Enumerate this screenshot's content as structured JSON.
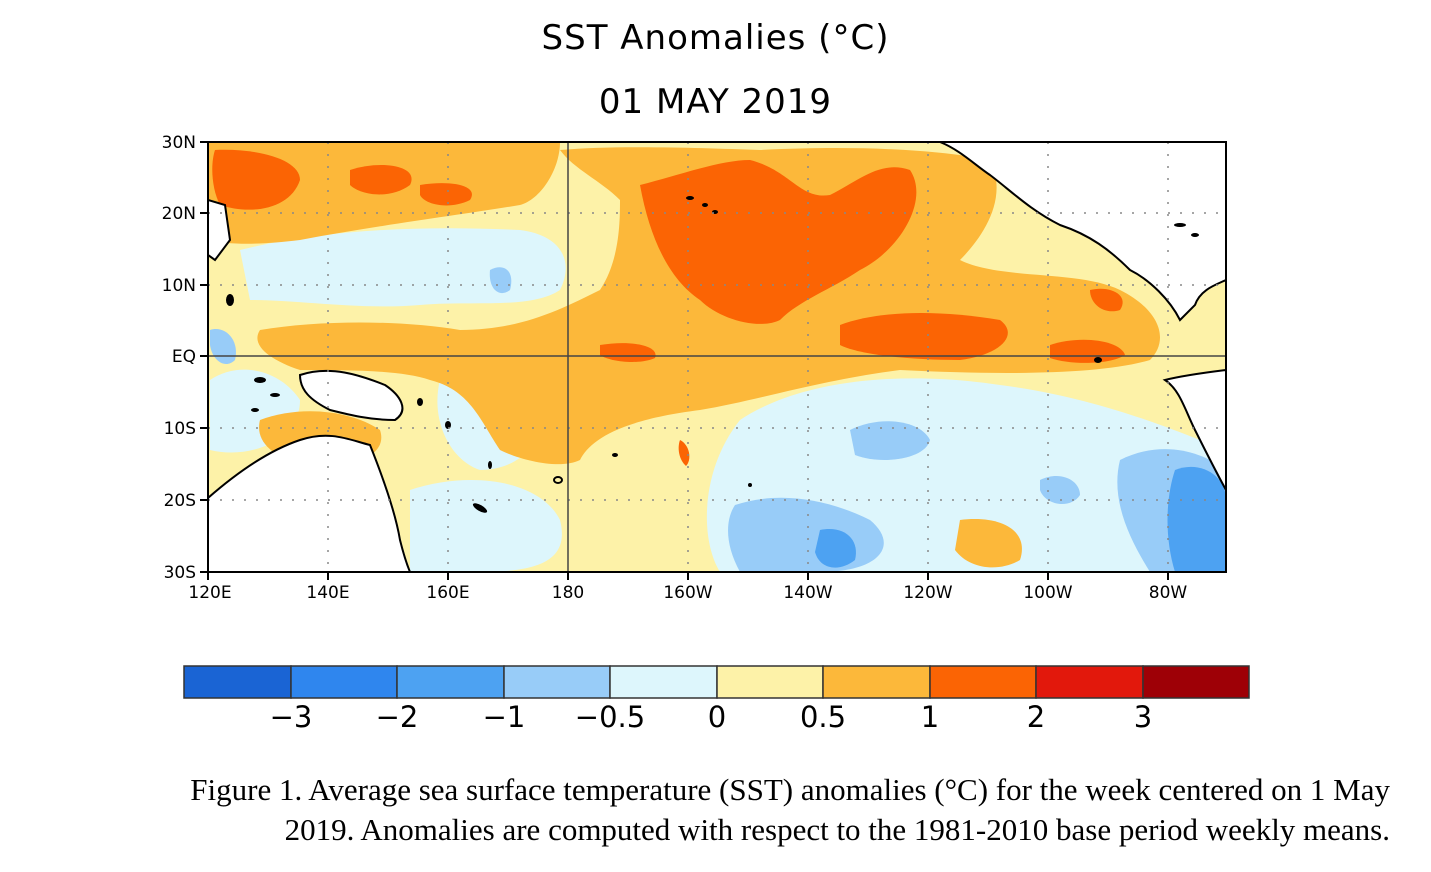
{
  "title": "SST Anomalies (°C)",
  "subtitle": "01 MAY 2019",
  "map": {
    "lon_ticks": [
      "120E",
      "140E",
      "160E",
      "180",
      "160W",
      "140W",
      "120W",
      "100W",
      "80W"
    ],
    "lat_ticks": [
      "30N",
      "20N",
      "10N",
      "EQ",
      "10S",
      "20S",
      "30S"
    ],
    "lon_range": [
      120,
      290
    ],
    "lat_range": [
      -30,
      30
    ]
  },
  "colorbar": {
    "labels": [
      "−3",
      "−2",
      "−1",
      "−0.5",
      "0",
      "0.5",
      "1",
      "2",
      "3"
    ],
    "colors": [
      "#1a64d4",
      "#2f86ee",
      "#4da2f2",
      "#98ccf8",
      "#ddf6fc",
      "#fdf2a8",
      "#fcb83a",
      "#fb6404",
      "#e2180c",
      "#9e0006"
    ]
  },
  "caption": {
    "line1": "Figure 1. Average sea surface temperature (SST) anomalies (°C) for the week centered on 1 May",
    "line2": "2019.  Anomalies are computed with respect to the 1981-2010 base period weekly means."
  }
}
